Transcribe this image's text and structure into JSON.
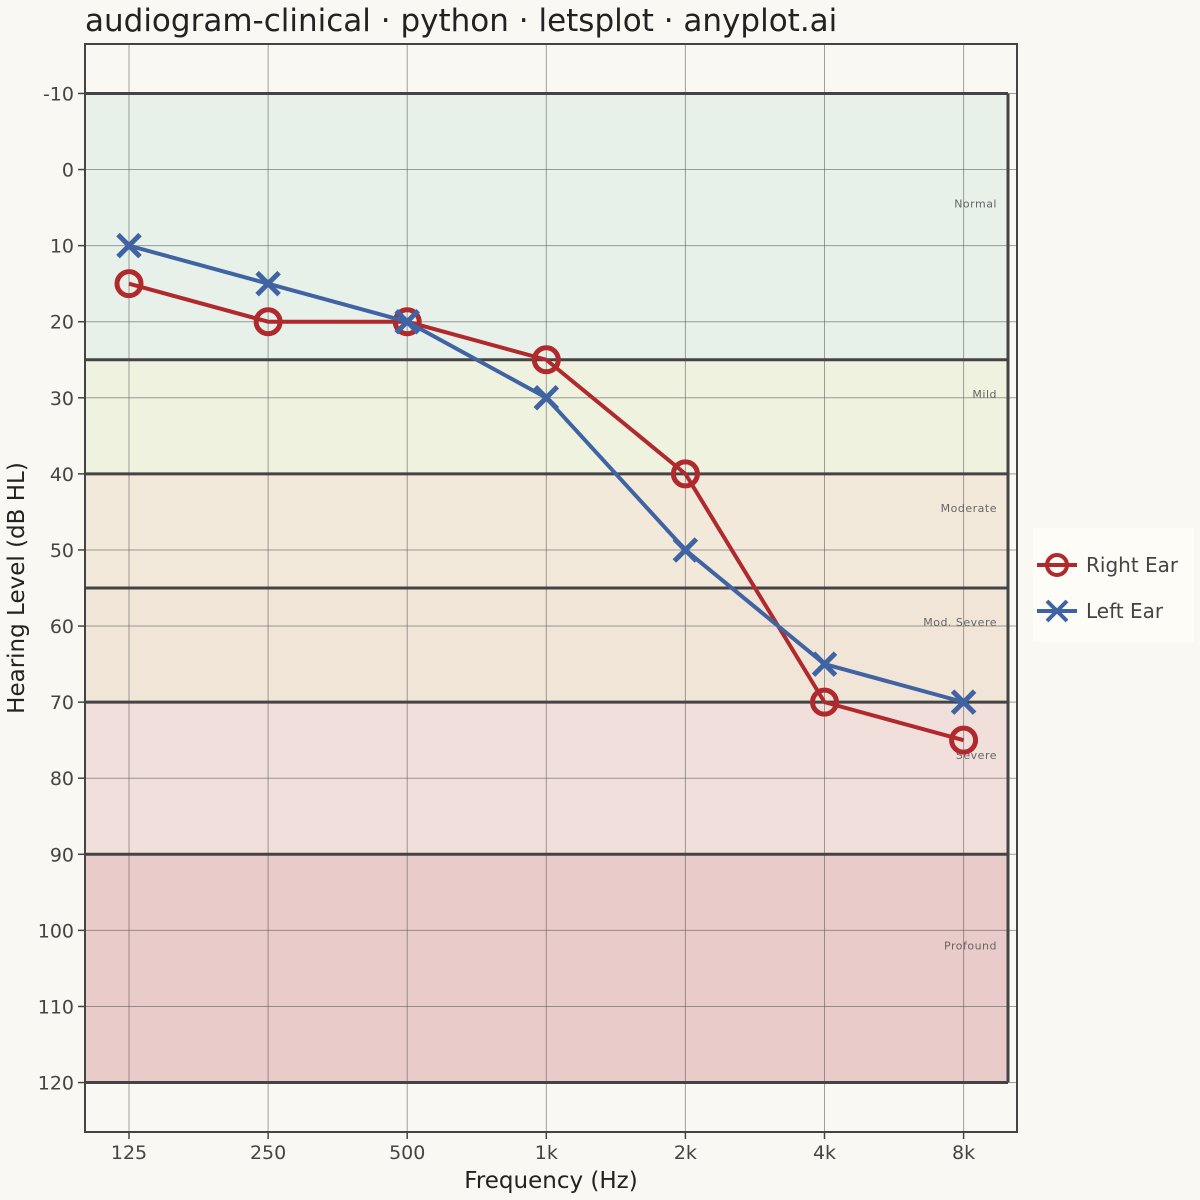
{
  "chart_data": {
    "type": "line",
    "title": "audiogram-clinical · python · letsplot · anyplot.ai",
    "xlabel": "Frequency (Hz)",
    "ylabel": "Hearing Level (dB HL)",
    "x_scale": "log2",
    "y_inverted": true,
    "ylim": [
      -16.5,
      126.5
    ],
    "categories": [
      "125",
      "250",
      "500",
      "1k",
      "2k",
      "4k",
      "8k"
    ],
    "x": [
      125,
      250,
      500,
      1000,
      2000,
      4000,
      8000
    ],
    "y_ticks": [
      -10,
      0,
      10,
      20,
      30,
      40,
      50,
      60,
      70,
      80,
      90,
      100,
      110,
      120
    ],
    "y_tick_labels": [
      "-10",
      "0",
      "10",
      "20",
      "30",
      "40",
      "50",
      "60",
      "70",
      "80",
      "90",
      "100",
      "110",
      "120"
    ],
    "grid": true,
    "legend_position": "right",
    "bands": [
      {
        "label": "Normal",
        "from": -10,
        "to": 25,
        "color": "#e7f1e9"
      },
      {
        "label": "Mild",
        "from": 25,
        "to": 40,
        "color": "#eff2df"
      },
      {
        "label": "Moderate",
        "from": 40,
        "to": 55,
        "color": "#f3e9db"
      },
      {
        "label": "Mod. Severe",
        "from": 55,
        "to": 70,
        "color": "#f1e5d7"
      },
      {
        "label": "Severe",
        "from": 70,
        "to": 90,
        "color": "#f1dfdb"
      },
      {
        "label": "Profound",
        "from": 90,
        "to": 120,
        "color": "#e9cbc9"
      }
    ],
    "series": [
      {
        "name": "Right Ear",
        "marker": "circle",
        "color": "#b0292d",
        "values": [
          15,
          20,
          20,
          25,
          40,
          70,
          75
        ]
      },
      {
        "name": "Left Ear",
        "marker": "x",
        "color": "#3f63a3",
        "values": [
          10,
          15,
          20,
          30,
          50,
          65,
          70
        ]
      }
    ]
  }
}
